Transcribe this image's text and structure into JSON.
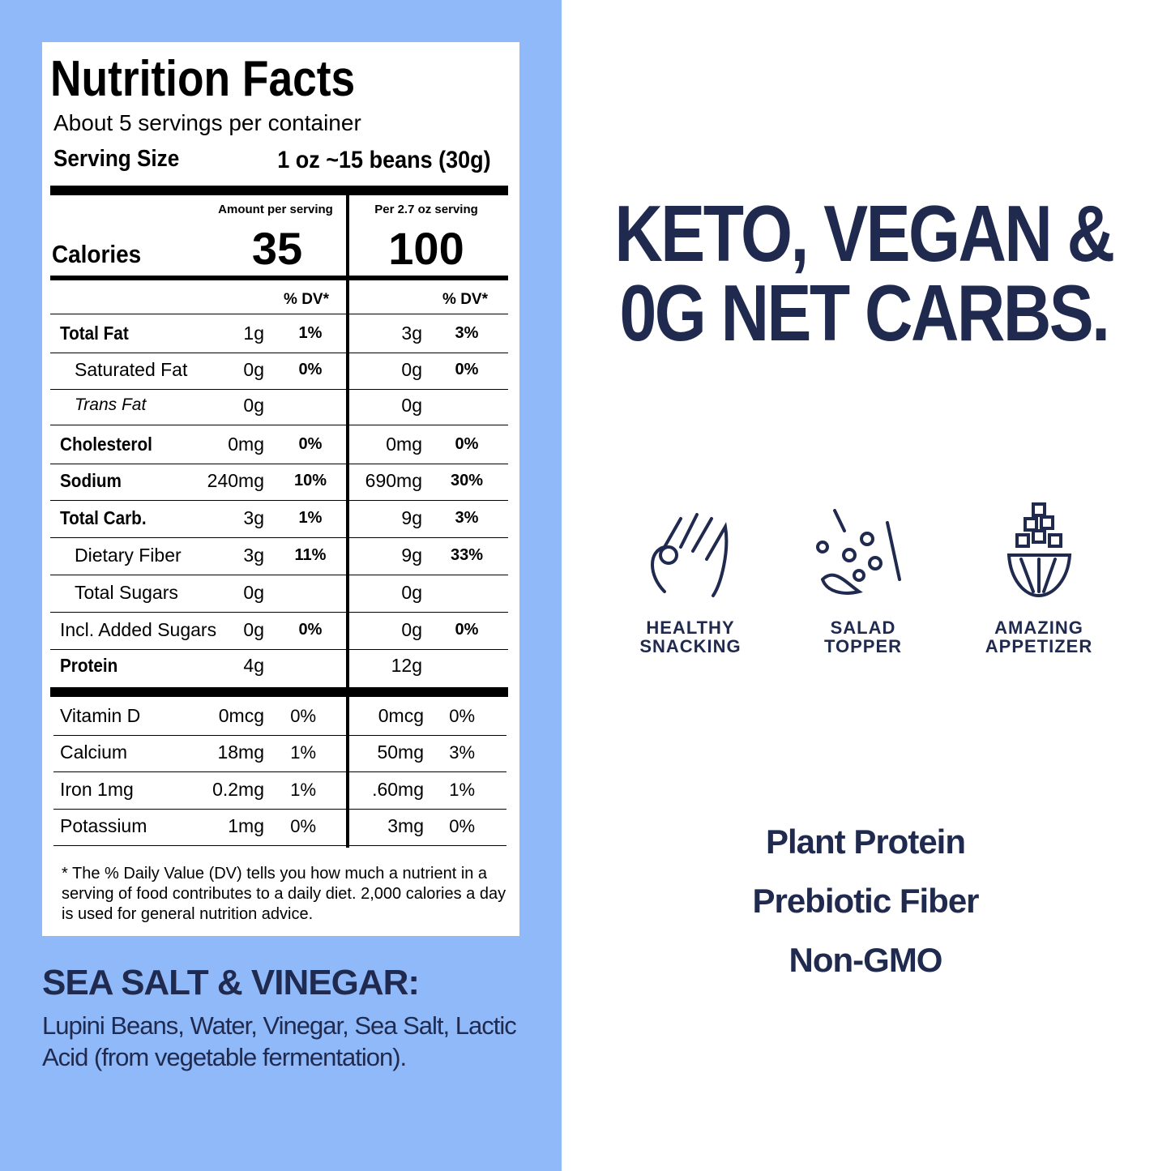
{
  "nutrition": {
    "title": "Nutrition Facts",
    "servings": "About 5 servings per container",
    "serving_size_label": "Serving Size",
    "serving_size": "1 oz ~15 beans (30g)",
    "column_headers": [
      "Amount per serving",
      "Per 2.7 oz serving"
    ],
    "calories_label": "Calories",
    "calories": [
      "35",
      "100"
    ],
    "dv_header": "% DV*",
    "rows": [
      {
        "name": "Total Fat",
        "per_serving": [
          "1g",
          "1%"
        ],
        "per_container": [
          "3g",
          "3%"
        ]
      },
      {
        "name": "Saturated Fat",
        "per_serving": [
          "0g",
          "0%"
        ],
        "per_container": [
          "0g",
          "0%"
        ]
      },
      {
        "name": "Trans Fat",
        "per_serving": [
          "0g"
        ],
        "per_container": [
          "0g"
        ]
      },
      {
        "name": "Cholesterol",
        "per_serving": [
          "0mg",
          "0%"
        ],
        "per_container": [
          "0mg",
          "0%"
        ]
      },
      {
        "name": "Sodium",
        "per_serving": [
          "240mg",
          "10%"
        ],
        "per_container": [
          "690mg",
          "30%"
        ]
      },
      {
        "name": "Total Carb.",
        "per_serving": [
          "3g",
          "1%"
        ],
        "per_container": [
          "9g",
          "3%"
        ]
      },
      {
        "name": "Dietary Fiber",
        "per_serving": [
          "3g",
          "11%"
        ],
        "per_container": [
          "9g",
          "33%"
        ]
      },
      {
        "name": "Total Sugars",
        "per_serving": [
          "0g"
        ],
        "per_container": [
          "0g"
        ]
      },
      {
        "name": "Incl. Added Sugars",
        "per_serving": [
          "0g",
          "0%"
        ],
        "per_container": [
          "0g",
          "0%"
        ]
      },
      {
        "name": "Protein",
        "per_serving": [
          "4g"
        ],
        "per_container": [
          "12g"
        ]
      }
    ],
    "vitamins": [
      {
        "name": "Vitamin D",
        "per_serving": [
          "0mcg",
          "0%"
        ],
        "per_container": [
          "0mcg",
          "0%"
        ]
      },
      {
        "name": "Calcium",
        "per_serving": [
          "18mg",
          "1%"
        ],
        "per_container": [
          "50mg",
          "3%"
        ]
      },
      {
        "name": "Iron 1mg",
        "per_serving": [
          "0.2mg",
          "1%"
        ],
        "per_container": [
          ".60mg",
          "1%"
        ]
      },
      {
        "name": "Potassium",
        "per_serving": [
          "1mg",
          "0%"
        ],
        "per_container": [
          "3mg",
          "0%"
        ]
      }
    ],
    "footnote": "* The % Daily Value (DV) tells you how much a nutrient in a serving of food contributes to a daily diet. 2,000 calories a day is used for general nutrition advice."
  },
  "flavor": {
    "title": "SEA SALT & VINEGAR:",
    "ingredients": "Lupini Beans, Water, Vinegar, Sea Salt, Lactic Acid (from vegetable fermentation)."
  },
  "headline": [
    "KETO, VEGAN &",
    "0G NET CARBS."
  ],
  "uses": [
    [
      "HEALTHY",
      "SNACKING"
    ],
    [
      "SALAD",
      "TOPPER"
    ],
    [
      "AMAZING",
      "APPETIZER"
    ]
  ],
  "benefits": [
    "Plant Protein",
    "Prebiotic Fiber",
    "Non-GMO"
  ]
}
